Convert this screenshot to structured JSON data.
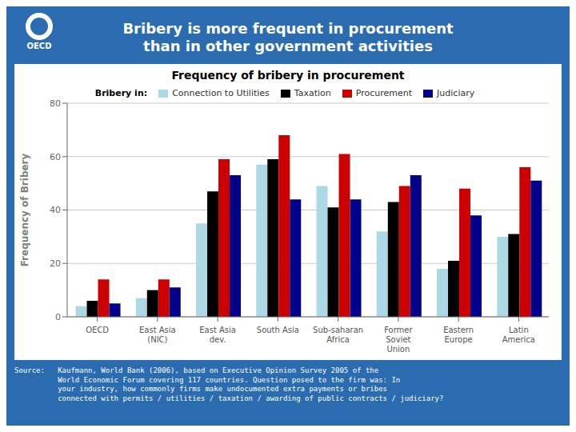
{
  "chart_data": {
    "type": "bar",
    "title": "Bribery is more frequent in procurement\nthan in other government activities",
    "subtitle": "Frequency of bribery in procurement",
    "ylabel": "Frequency of Bribery",
    "legend_title": "Bribery in:",
    "categories": [
      "OECD",
      "East Asia\n(NIC)",
      "East Asia\ndev.",
      "South Asia",
      "Sub-saharan\nAfrica",
      "Former\nSoviet\nUnion",
      "Eastern\nEurope",
      "Latin\nAmerica"
    ],
    "series": [
      {
        "name": "Connection to Utilities",
        "color": "#ADD8E6",
        "values": [
          4,
          7,
          35,
          57,
          49,
          32,
          18,
          30
        ]
      },
      {
        "name": "Taxation",
        "color": "#000000",
        "values": [
          6,
          10,
          47,
          59,
          41,
          43,
          21,
          31
        ]
      },
      {
        "name": "Procurement",
        "color": "#CC0000",
        "values": [
          14,
          14,
          59,
          68,
          61,
          49,
          48,
          56
        ]
      },
      {
        "name": "Judiciary",
        "color": "#00008B",
        "values": [
          5,
          11,
          53,
          44,
          44,
          53,
          38,
          51
        ]
      }
    ],
    "ylim": [
      0,
      80
    ],
    "yticks": [
      0,
      20,
      40,
      60,
      80
    ],
    "grid": true,
    "legend": "top",
    "annotations": [
      "Source:   Kaufmann, World Bank (2006), based on Executive Opinion Survey 2005 of the\n          World Economic Forum covering 117 countries. Question posed to the firm was: In\n          your industry, how commonly firms make undocumented extra payments or bribes\n          connected with permits / utilities / taxation / awarding of public contracts / judiciary?",
      "OECD"
    ]
  }
}
